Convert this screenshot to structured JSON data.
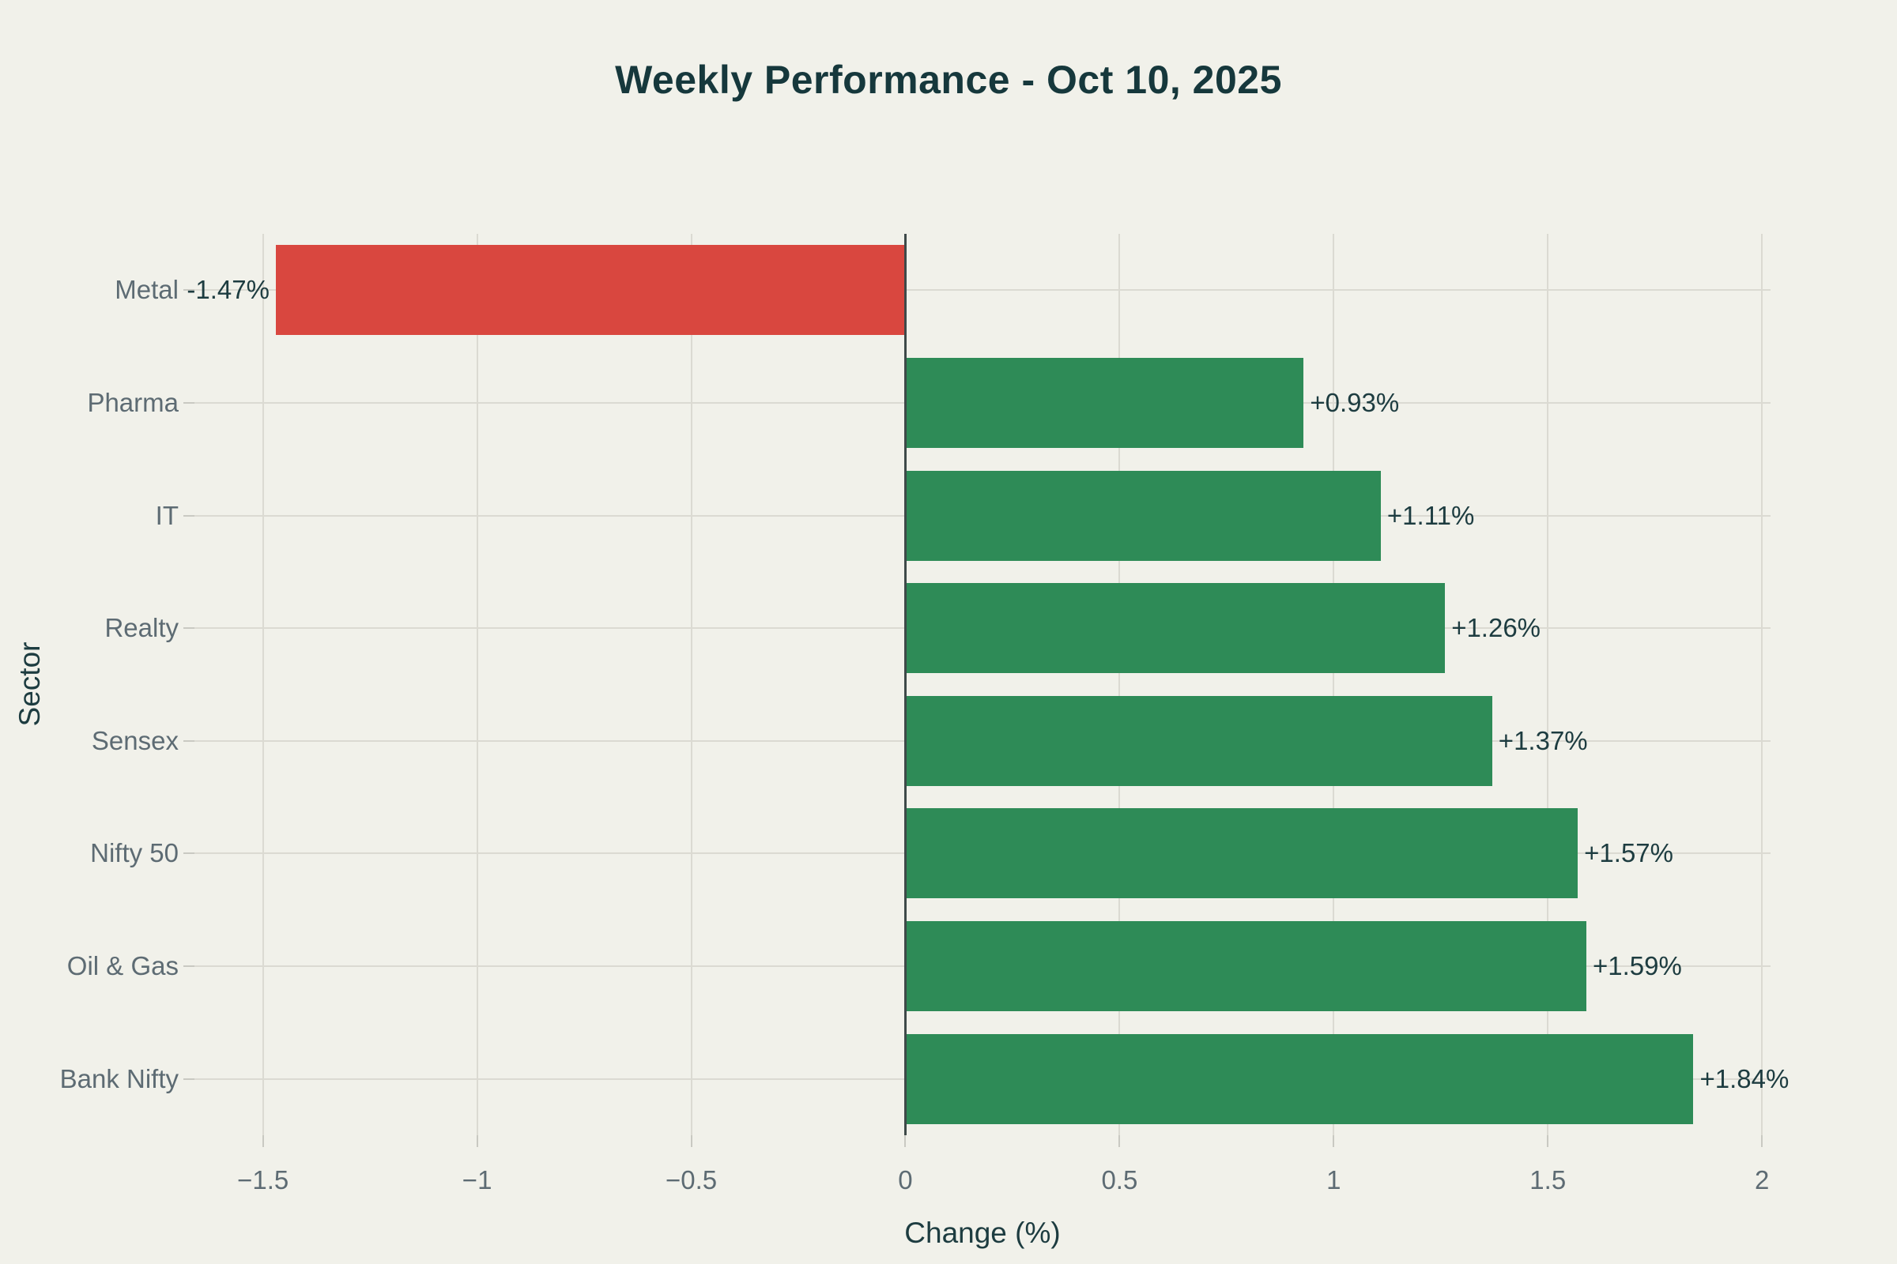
{
  "title": "Weekly Performance - Oct 10, 2025",
  "chart_data": {
    "type": "bar",
    "orientation": "horizontal",
    "title": "Weekly Performance - Oct 10, 2025",
    "xlabel": "Change (%)",
    "ylabel": "Sector",
    "categories": [
      "Metal",
      "Pharma",
      "IT",
      "Realty",
      "Sensex",
      "Nifty 50",
      "Oil & Gas",
      "Bank Nifty"
    ],
    "values": [
      -1.47,
      0.93,
      1.11,
      1.26,
      1.37,
      1.57,
      1.59,
      1.84
    ],
    "value_labels": [
      "-1.47%",
      "+0.93%",
      "+1.11%",
      "+1.26%",
      "+1.37%",
      "+1.57%",
      "+1.59%",
      "+1.84%"
    ],
    "xticks": [
      -1.5,
      -1,
      -0.5,
      0,
      0.5,
      1,
      1.5,
      2
    ],
    "xtick_labels": [
      "−1.5",
      "−1",
      "−0.5",
      "0",
      "0.5",
      "1",
      "1.5",
      "2"
    ],
    "xlim": [
      -1.66,
      2.02
    ],
    "grid": true,
    "legend": false,
    "bar_width_fraction": 0.8,
    "colors": {
      "positive": "#2E8B57",
      "negative": "#D9473F"
    }
  },
  "style": {
    "background": "#F1F1EA",
    "title_color": "#16383C",
    "axis_title_color": "#1D3C40",
    "value_label_color": "#1D3C40",
    "tick_label_color": "#5D6B73",
    "grid_color": "#DBDAD2",
    "zero_line_color": "#3E4949",
    "tick_mark_color": "#C9C9C2"
  }
}
